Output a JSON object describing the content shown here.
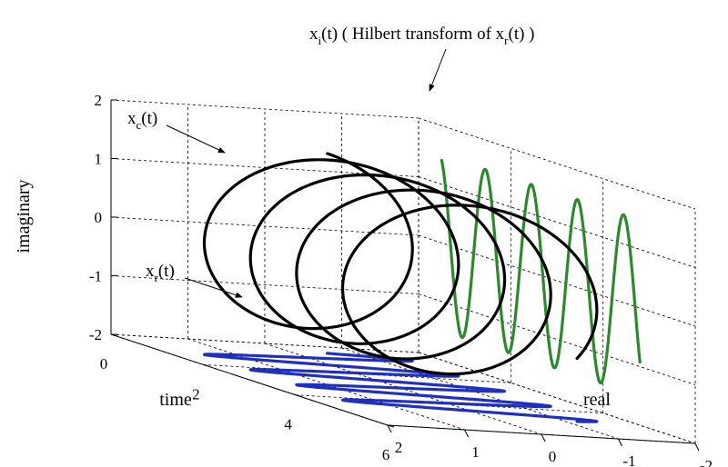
{
  "chart_data": {
    "type": "line",
    "title": "",
    "xlabel": "time",
    "ylabel": "real",
    "zlabel": "imaginary",
    "xlim": [
      0,
      6
    ],
    "ylim": [
      -2,
      2
    ],
    "zlim": [
      -2,
      2
    ],
    "x_ticks": [
      "0",
      "2",
      "4",
      "6"
    ],
    "y_ticks": [
      "2",
      "1",
      "0",
      "-1",
      "-2"
    ],
    "z_ticks": [
      "2",
      "1",
      "0",
      "-1",
      "-2"
    ],
    "grid": true,
    "series": [
      {
        "name": "x_c(t)",
        "color": "#000000",
        "shape": "helix",
        "t_start": 0.5,
        "t_end": 4.8,
        "amplitude": 1.5,
        "cycles_per_unit_time": 1,
        "phase_deg": -70,
        "description_points": "x = t, real = 1.5*cos(2*pi*t + phase), imaginary = 1.5*sin(2*pi*t + phase)"
      },
      {
        "name": "x_r(t)",
        "color": "#1f2fbf",
        "plane": "imaginary = -2",
        "t_start": 0.5,
        "t_end": 4.8,
        "amplitude": 1.5,
        "cycles_per_unit_time": 1,
        "phase_deg": -70
      },
      {
        "name": "x_i(t)",
        "color": "#2a8a2a",
        "plane": "real = -2",
        "t_start": 0.5,
        "t_end": 4.8,
        "amplitude": 1.5,
        "cycles_per_unit_time": 1,
        "phase_deg": -70
      }
    ],
    "annotations": [
      {
        "main": "x",
        "sub": "c",
        "rest": "(t)"
      },
      {
        "main": "x",
        "sub": "r",
        "rest": "(t)"
      },
      {
        "main": "x",
        "sub": "i",
        "rest": "(t)  ( Hilbert transform of x",
        "sub2": "r",
        "rest2": "(t) )"
      }
    ]
  }
}
